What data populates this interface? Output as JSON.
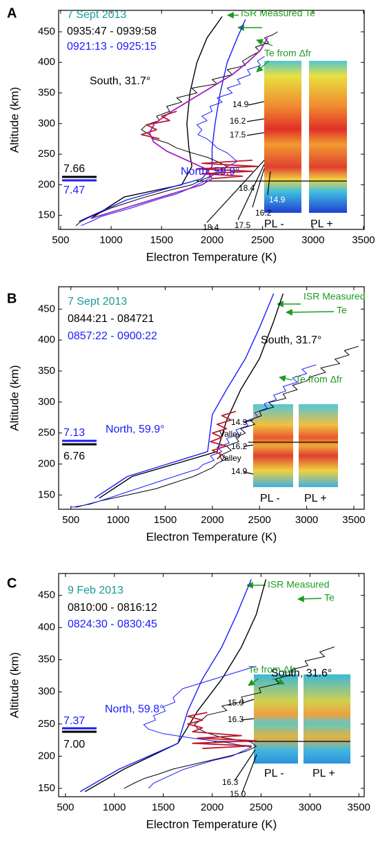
{
  "chart_data": [
    {
      "type": "line",
      "panel": "A",
      "date": "7 Sept 2013",
      "times": [
        "0935:47 - 0939:58",
        "0921:13 - 0925:15"
      ],
      "xlabel": "Electron Temperature (K)",
      "ylabel": "Altitude (km)",
      "xlim": [
        480,
        3507
      ],
      "ylim": [
        127,
        485
      ],
      "xticks": [
        500,
        1000,
        1500,
        2000,
        2500,
        3000,
        3500
      ],
      "yticks": [
        150,
        200,
        250,
        300,
        350,
        400,
        450
      ],
      "annotations": [
        "South, 31.7°",
        "North, 59.9°",
        "ISR Measured Te",
        "Te from Δfr",
        "PL -",
        "PL +",
        "14.9",
        "16.2",
        "17.5",
        "18.4",
        "14.9",
        "16.2",
        "17.5",
        "18.4"
      ],
      "scale_labels": [
        "7.66",
        "7.47"
      ],
      "series": [
        {
          "color": "#000000",
          "width": 1.4,
          "x": [
            2100,
            1950,
            1850,
            1780,
            1750,
            1770,
            1800,
            1700,
            1130,
            800
          ],
          "y": [
            475,
            440,
            400,
            350,
            300,
            260,
            230,
            200,
            180,
            145
          ]
        },
        {
          "color": "#1a1aff",
          "width": 1.4,
          "x": [
            2330,
            2250,
            2150,
            2080,
            2030,
            2000,
            2000,
            1900,
            1150,
            680
          ],
          "y": [
            470,
            440,
            400,
            350,
            300,
            260,
            230,
            210,
            175,
            140
          ]
        },
        {
          "color": "#000000",
          "width": 1,
          "x": [
            2650,
            2600,
            2520,
            2560,
            2430,
            2470,
            2380,
            2300,
            2330,
            2150,
            2200,
            2000,
            2050,
            1800,
            1850,
            1650,
            1700,
            1550,
            1580,
            1450,
            1480,
            1350,
            1300,
            1380,
            1420,
            1560,
            1650,
            1800,
            1950,
            2050,
            2150,
            2050,
            2000,
            1900,
            1800,
            1600,
            1450,
            1300,
            1150,
            1000,
            900,
            800,
            700,
            650
          ],
          "y": [
            450,
            445,
            440,
            432,
            425,
            418,
            410,
            402,
            395,
            388,
            380,
            372,
            365,
            358,
            350,
            342,
            335,
            328,
            320,
            312,
            305,
            298,
            290,
            282,
            275,
            268,
            260,
            252,
            245,
            238,
            230,
            222,
            215,
            208,
            200,
            192,
            185,
            178,
            170,
            162,
            155,
            148,
            140,
            133
          ]
        },
        {
          "color": "#1a1aff",
          "width": 1,
          "x": [
            2520,
            2450,
            2480,
            2350,
            2380,
            2250,
            2280,
            2150,
            2200,
            2050,
            2100,
            1980,
            2000,
            1900,
            1950,
            1850,
            1900,
            1860,
            1950,
            2000,
            2050,
            2150,
            2200,
            2250,
            2150,
            2100,
            2000,
            1950,
            1850,
            1750,
            1650,
            1500,
            1350,
            1200,
            1050,
            900,
            800,
            700
          ],
          "y": [
            410,
            402,
            395,
            388,
            380,
            372,
            365,
            358,
            350,
            342,
            335,
            328,
            320,
            312,
            305,
            298,
            290,
            282,
            275,
            268,
            260,
            252,
            245,
            238,
            230,
            222,
            215,
            208,
            200,
            192,
            185,
            178,
            170,
            162,
            155,
            148,
            140,
            133
          ]
        },
        {
          "color": "#a020c0",
          "width": 1.8,
          "x": [
            2550,
            2480,
            2350,
            2200,
            2000,
            1800,
            1600,
            1430,
            1380,
            1420,
            1550,
            1750,
            1950,
            2000,
            1900,
            1700,
            1400,
            1100,
            800
          ],
          "y": [
            440,
            420,
            400,
            380,
            360,
            340,
            320,
            300,
            285,
            270,
            255,
            240,
            225,
            210,
            200,
            190,
            175,
            160,
            145
          ]
        },
        {
          "color": "#c0182c",
          "width": 1.8,
          "x": [
            1650,
            1500,
            1580,
            1350,
            1450,
            1300,
            1480,
            null,
            2400,
            1900,
            2450,
            1850,
            2400,
            1900,
            2300,
            2000
          ],
          "y": [
            320,
            312,
            305,
            298,
            290,
            282,
            275,
            null,
            240,
            235,
            230,
            226,
            222,
            218,
            214,
            210
          ]
        }
      ]
    },
    {
      "type": "line",
      "panel": "B",
      "date": "7 Sept 2013",
      "times": [
        "0844:21 - 084721",
        "0857:22 - 0900:22"
      ],
      "xlabel": "Electron Temperature (K)",
      "ylabel": "Altitude (km)",
      "xlim": [
        370,
        3610
      ],
      "ylim": [
        127,
        486
      ],
      "xticks": [
        500,
        1000,
        1500,
        2000,
        2500,
        3000,
        3500
      ],
      "yticks": [
        150,
        200,
        250,
        300,
        350,
        400,
        450
      ],
      "annotations": [
        "South, 31.7°",
        "North, 59.9°",
        "ISR Measured",
        "Te",
        "Te from Δfr",
        "PL -",
        "PL +",
        "14.9",
        "Valley",
        "16.2",
        "Valley",
        "14.9"
      ],
      "scale_labels": [
        "7.13",
        "6.76"
      ],
      "series": [
        {
          "color": "#000000",
          "width": 1.4,
          "x": [
            2750,
            2650,
            2500,
            2300,
            2150,
            2050,
            1150,
            800
          ],
          "y": [
            475,
            430,
            370,
            320,
            270,
            220,
            180,
            145
          ]
        },
        {
          "color": "#1a1aff",
          "width": 1.4,
          "x": [
            2650,
            2500,
            2350,
            2150,
            2000,
            1950,
            1100,
            750
          ],
          "y": [
            475,
            420,
            370,
            320,
            280,
            220,
            180,
            145
          ]
        },
        {
          "color": "#000000",
          "width": 1,
          "x": [
            3550,
            3400,
            3450,
            3300,
            3350,
            3150,
            3200,
            3050,
            3000,
            2850,
            2900,
            2750,
            2780,
            2600,
            2650,
            2500,
            2520,
            2400,
            2450,
            2300,
            2350,
            2250,
            2280,
            2150,
            2200,
            2100,
            2150,
            2050,
            2000,
            1900,
            1800,
            1600,
            1400,
            1100,
            800,
            550
          ],
          "y": [
            390,
            383,
            376,
            369,
            362,
            355,
            348,
            341,
            334,
            327,
            320,
            313,
            306,
            299,
            292,
            285,
            278,
            271,
            264,
            257,
            250,
            243,
            236,
            229,
            222,
            215,
            208,
            201,
            194,
            187,
            180,
            170,
            160,
            150,
            140,
            130
          ]
        },
        {
          "color": "#1a1aff",
          "width": 1,
          "x": [
            3100,
            2950,
            3000,
            2850,
            2900,
            2750,
            2780,
            2650,
            2680,
            2550,
            2580,
            2450,
            2480,
            2350,
            2380,
            2250,
            2280,
            2150,
            2180,
            2050,
            2100,
            1980,
            2020,
            1900,
            1850,
            1700,
            1500,
            1300,
            1100,
            900,
            700,
            500
          ],
          "y": [
            360,
            353,
            346,
            339,
            332,
            325,
            318,
            311,
            304,
            297,
            290,
            283,
            276,
            269,
            262,
            255,
            248,
            241,
            234,
            227,
            220,
            213,
            206,
            199,
            192,
            185,
            175,
            165,
            155,
            145,
            135,
            130
          ]
        },
        {
          "color": "#c0182c",
          "width": 1.8,
          "x": [
            2250,
            2100,
            2200,
            2050,
            2150,
            2000,
            2100,
            1980,
            2150,
            2000,
            2100,
            2050
          ],
          "y": [
            285,
            278,
            271,
            264,
            257,
            250,
            243,
            236,
            229,
            222,
            215,
            208
          ]
        }
      ]
    },
    {
      "type": "line",
      "panel": "C",
      "date": "9 Feb 2013",
      "times": [
        "0810:00 - 0816:12",
        "0824:30 - 0830:45"
      ],
      "xlabel": "Electron Temperature (K)",
      "ylabel": "Altitude (km)",
      "xlim": [
        430,
        3555
      ],
      "ylim": [
        137,
        484
      ],
      "xticks": [
        500,
        1000,
        1500,
        2000,
        2500,
        3000,
        3500
      ],
      "yticks": [
        150,
        200,
        250,
        300,
        350,
        400,
        450
      ],
      "annotations": [
        "South, 31.6°",
        "North, 59.8°",
        "ISR Measured",
        "Te",
        "Te from Δfr",
        "PL -",
        "PL +",
        "15.0",
        "16.3",
        "16.3",
        "15.0"
      ],
      "scale_labels": [
        "7.37",
        "7.00"
      ],
      "series": [
        {
          "color": "#000000",
          "width": 1.4,
          "x": [
            2550,
            2450,
            2300,
            2100,
            1850,
            1650,
            1100,
            700
          ],
          "y": [
            475,
            420,
            370,
            320,
            270,
            220,
            180,
            145
          ]
        },
        {
          "color": "#1a1aff",
          "width": 1.4,
          "x": [
            2400,
            2250,
            2100,
            1900,
            1750,
            1650,
            1050,
            650
          ],
          "y": [
            475,
            420,
            370,
            320,
            270,
            220,
            180,
            145
          ]
        },
        {
          "color": "#000000",
          "width": 1,
          "x": [
            3250,
            3100,
            3150,
            2950,
            2980,
            2800,
            2820,
            2650,
            2680,
            2480,
            2500,
            2300,
            2320,
            2100,
            2150,
            1950,
            1900,
            1820,
            1850,
            1950,
            2100,
            2400,
            2450,
            2350,
            2200,
            2000,
            1800,
            1600,
            1450,
            1300,
            1200,
            1100
          ],
          "y": [
            370,
            362,
            355,
            348,
            341,
            334,
            327,
            320,
            313,
            306,
            299,
            292,
            285,
            278,
            271,
            264,
            257,
            250,
            243,
            236,
            229,
            222,
            215,
            208,
            201,
            194,
            187,
            180,
            172,
            165,
            158,
            150
          ]
        },
        {
          "color": "#1a1aff",
          "width": 1,
          "x": [
            2450,
            2300,
            2150,
            2000,
            1850,
            1700,
            1650,
            1600,
            1620,
            1500,
            1520,
            1400,
            1420,
            1300,
            1350,
            1500,
            1800,
            2150,
            2400,
            2300,
            2200,
            2000,
            1850,
            1700,
            1600,
            1500,
            1400,
            1350
          ],
          "y": [
            340,
            333,
            326,
            319,
            312,
            305,
            298,
            291,
            284,
            277,
            270,
            263,
            256,
            249,
            242,
            235,
            228,
            221,
            214,
            207,
            200,
            193,
            186,
            179,
            172,
            165,
            158,
            150
          ]
        },
        {
          "color": "#c0182c",
          "width": 1.8,
          "x": [
            1950,
            1750,
            1900,
            1750,
            1900,
            1800,
            2300,
            1850,
            2450,
            1800,
            2400,
            1900
          ],
          "y": [
            268,
            262,
            256,
            250,
            244,
            238,
            232,
            228,
            224,
            220,
            216,
            212
          ]
        }
      ]
    }
  ]
}
